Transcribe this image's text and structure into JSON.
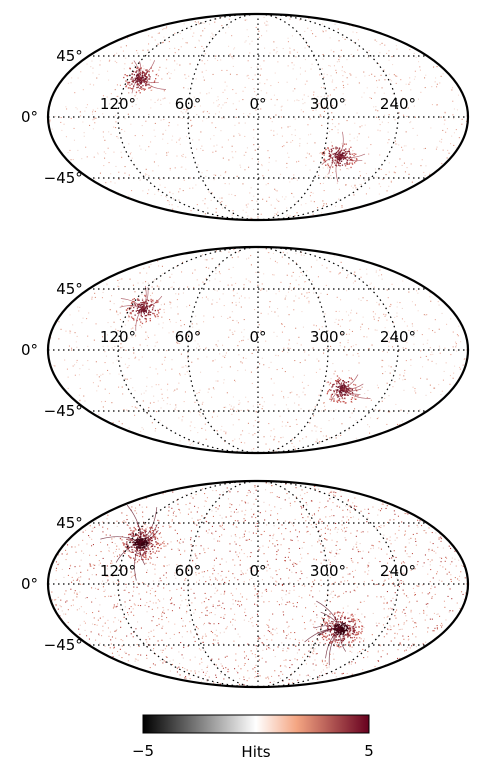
{
  "chart_data": [
    {
      "type": "heatmap",
      "projection": "mollweide",
      "longitude_tick_labels": [
        "120°",
        "60°",
        "0°",
        "300°",
        "240°"
      ],
      "latitude_tick_labels": [
        "45°",
        "0°",
        "−45°"
      ],
      "grid": true,
      "hotspots": [
        {
          "lon": 110,
          "lat": 28,
          "strength": "moderate"
        },
        {
          "lon": 285,
          "lat": -28,
          "strength": "moderate"
        }
      ]
    },
    {
      "type": "heatmap",
      "projection": "mollweide",
      "longitude_tick_labels": [
        "120°",
        "60°",
        "0°",
        "300°",
        "240°"
      ],
      "latitude_tick_labels": [
        "45°",
        "0°",
        "−45°"
      ],
      "grid": true,
      "hotspots": [
        {
          "lon": 108,
          "lat": 30,
          "strength": "moderate"
        },
        {
          "lon": 282,
          "lat": -28,
          "strength": "moderate"
        }
      ]
    },
    {
      "type": "heatmap",
      "projection": "mollweide",
      "longitude_tick_labels": [
        "120°",
        "60°",
        "0°",
        "300°",
        "240°"
      ],
      "latitude_tick_labels": [
        "45°",
        "0°",
        "−45°"
      ],
      "grid": true,
      "hotspots": [
        {
          "lon": 110,
          "lat": 30,
          "strength": "strong"
        },
        {
          "lon": 282,
          "lat": -32,
          "strength": "strong"
        }
      ]
    }
  ],
  "colorbar": {
    "label": "Hits",
    "min": -5,
    "max": 5,
    "min_label": "−5",
    "max_label": "5",
    "colors": [
      "#000000",
      "#ffffff",
      "#f4a582",
      "#67001f"
    ]
  }
}
